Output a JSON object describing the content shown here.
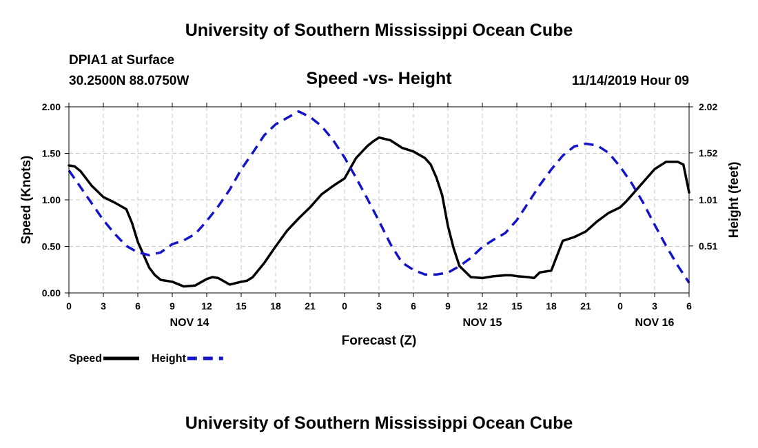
{
  "page": {
    "title_top": "University of Southern Mississippi Ocean Cube",
    "title_bottom": "University of Southern Mississippi Ocean Cube",
    "station": "DPIA1 at Surface",
    "coordinates": "30.2500N 88.0750W",
    "datetime": "11/14/2019 Hour 09"
  },
  "chart_data": {
    "type": "line",
    "title": "Speed -vs- Height",
    "xlabel": "Forecast (Z)",
    "ylabel": "Speed (Knots)",
    "y2label": "Height (feet)",
    "xlim": [
      0,
      54
    ],
    "ylim": [
      0,
      2.0
    ],
    "y2lim": [
      0,
      2.02
    ],
    "grid": true,
    "x_ticks": [
      0,
      3,
      6,
      9,
      12,
      15,
      18,
      21,
      24,
      27,
      30,
      33,
      36,
      39,
      42,
      45,
      48,
      51,
      54
    ],
    "x_tick_labels": [
      "0",
      "3",
      "6",
      "9",
      "12",
      "15",
      "18",
      "21",
      "0",
      "3",
      "6",
      "9",
      "12",
      "15",
      "18",
      "21",
      "0",
      "3",
      "6"
    ],
    "y_ticks": [
      0,
      0.5,
      1.0,
      1.5,
      2.0
    ],
    "y_tick_labels": [
      "0.00",
      "0.50",
      "1.00",
      "1.50",
      "2.00"
    ],
    "y2_ticks": [
      0.51,
      1.01,
      1.52,
      2.02
    ],
    "y2_tick_labels": [
      "0.51",
      "1.01",
      "1.52",
      "2.02"
    ],
    "day_labels": [
      {
        "x": 10.5,
        "text": "NOV 14"
      },
      {
        "x": 36,
        "text": "NOV 15"
      },
      {
        "x": 51,
        "text": "NOV 16"
      }
    ],
    "legend_position": "bottom-left",
    "series": [
      {
        "name": "Speed",
        "axis": "left",
        "color": "#000000",
        "dash": "solid",
        "x": [
          0,
          0.5,
          1,
          2,
          3,
          4,
          5,
          5.5,
          6,
          7,
          7.5,
          8,
          9,
          10,
          11,
          12,
          12.5,
          13,
          14,
          15,
          15.5,
          16,
          17,
          18,
          19,
          20,
          21,
          22,
          23,
          24,
          25,
          26,
          26.5,
          27,
          28,
          29,
          30,
          31,
          31.5,
          32,
          32.5,
          33,
          33.5,
          34,
          35,
          36,
          37,
          38,
          38.5,
          39,
          40,
          40.5,
          41,
          42,
          43,
          44,
          45,
          46,
          47,
          48,
          48.5,
          49,
          49.5,
          50,
          51,
          52,
          53,
          53.5,
          54
        ],
        "y": [
          1.37,
          1.36,
          1.31,
          1.15,
          1.03,
          0.97,
          0.9,
          0.75,
          0.55,
          0.27,
          0.19,
          0.14,
          0.12,
          0.07,
          0.08,
          0.15,
          0.17,
          0.16,
          0.09,
          0.12,
          0.13,
          0.17,
          0.32,
          0.5,
          0.67,
          0.8,
          0.92,
          1.06,
          1.15,
          1.23,
          1.45,
          1.58,
          1.63,
          1.67,
          1.64,
          1.56,
          1.52,
          1.45,
          1.38,
          1.24,
          1.05,
          0.72,
          0.48,
          0.29,
          0.17,
          0.16,
          0.18,
          0.19,
          0.19,
          0.18,
          0.17,
          0.16,
          0.22,
          0.24,
          0.56,
          0.6,
          0.66,
          0.77,
          0.86,
          0.92,
          0.98,
          1.05,
          1.12,
          1.19,
          1.33,
          1.41,
          1.41,
          1.38,
          1.08
        ]
      },
      {
        "name": "Height",
        "axis": "right",
        "color": "#1414c8",
        "dash": "dashed",
        "x": [
          0,
          1,
          2,
          3,
          4,
          5,
          6,
          7,
          8,
          9,
          10,
          11,
          12,
          13,
          14,
          15,
          16,
          17,
          18,
          19,
          20,
          21,
          22,
          23,
          24,
          25,
          26,
          27,
          28,
          29,
          30,
          31,
          32,
          33,
          34,
          35,
          36,
          37,
          38,
          39,
          40,
          41,
          42,
          43,
          44,
          45,
          46,
          47,
          48,
          49,
          50,
          51,
          52,
          53,
          54
        ],
        "y": [
          1.33,
          1.15,
          0.97,
          0.79,
          0.64,
          0.51,
          0.44,
          0.41,
          0.44,
          0.53,
          0.57,
          0.64,
          0.78,
          0.94,
          1.12,
          1.34,
          1.52,
          1.71,
          1.83,
          1.9,
          1.97,
          1.91,
          1.81,
          1.66,
          1.47,
          1.25,
          1.02,
          0.78,
          0.53,
          0.33,
          0.25,
          0.2,
          0.2,
          0.22,
          0.29,
          0.38,
          0.5,
          0.58,
          0.65,
          0.79,
          0.98,
          1.17,
          1.34,
          1.49,
          1.59,
          1.62,
          1.6,
          1.52,
          1.37,
          1.19,
          0.98,
          0.74,
          0.51,
          0.3,
          0.11
        ]
      }
    ]
  }
}
